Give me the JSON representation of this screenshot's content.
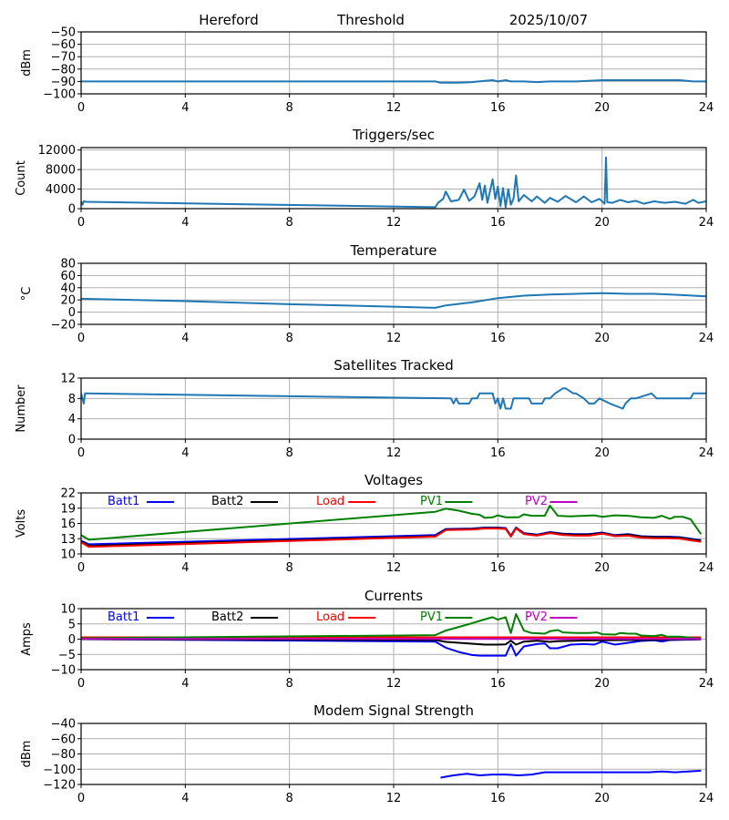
{
  "header": {
    "station": "Hereford",
    "plot": "Threshold",
    "date": "2025/10/07"
  },
  "chart_data": [
    {
      "id": "threshold",
      "type": "line",
      "title": "",
      "xlabel": "",
      "ylabel": "dBm",
      "xlim": [
        0,
        24
      ],
      "ylim": [
        -100,
        -50
      ],
      "xticks": [
        0,
        4,
        8,
        12,
        16,
        20,
        24
      ],
      "yticks": [
        -100,
        -90,
        -80,
        -70,
        -60,
        -50
      ],
      "ytick_labels": [
        "−100",
        "−90",
        "−80",
        "−70",
        "−60",
        "−50"
      ],
      "grid": true,
      "series": [
        {
          "name": "Threshold",
          "color": "#1f77b4",
          "x": [
            0,
            0.2,
            13.6,
            13.8,
            14.5,
            15.0,
            15.5,
            15.8,
            16.0,
            16.3,
            16.5,
            17.0,
            17.5,
            18.0,
            19.0,
            20.0,
            21.0,
            22.0,
            23.0,
            23.5,
            24
          ],
          "y": [
            -90,
            -90,
            -90,
            -91,
            -91,
            -90.5,
            -89.5,
            -89,
            -90,
            -89,
            -90,
            -90,
            -90.5,
            -90,
            -90,
            -89,
            -89,
            -89,
            -89,
            -90,
            -90
          ]
        }
      ]
    },
    {
      "id": "triggers",
      "type": "line",
      "title": "Triggers/sec",
      "ylabel": "Count",
      "xlim": [
        0,
        24
      ],
      "ylim": [
        0,
        12500
      ],
      "xticks": [
        0,
        4,
        8,
        12,
        16,
        20,
        24
      ],
      "yticks": [
        0,
        4000,
        8000,
        12000
      ],
      "ytick_labels": [
        "0",
        "4000",
        "8000",
        "12000"
      ],
      "grid": true,
      "series": [
        {
          "name": "Triggers",
          "color": "#1f77b4",
          "x": [
            0,
            0.05,
            0.1,
            0.2,
            13.6,
            13.7,
            13.9,
            14.0,
            14.2,
            14.5,
            14.7,
            14.9,
            15.1,
            15.3,
            15.4,
            15.5,
            15.6,
            15.8,
            15.9,
            16.0,
            16.1,
            16.2,
            16.3,
            16.4,
            16.5,
            16.6,
            16.7,
            16.8,
            17.0,
            17.3,
            17.5,
            17.8,
            18.0,
            18.3,
            18.6,
            19.0,
            19.3,
            19.6,
            19.9,
            20.1,
            20.15,
            20.2,
            20.4,
            20.7,
            21.0,
            21.3,
            21.6,
            22.0,
            22.4,
            22.8,
            23.2,
            23.5,
            23.7,
            24
          ],
          "y": [
            1500,
            800,
            1500,
            1400,
            300,
            1200,
            2000,
            3500,
            1500,
            1800,
            3900,
            1600,
            2500,
            5200,
            1800,
            4700,
            1200,
            6000,
            2000,
            4500,
            500,
            4200,
            300,
            4000,
            800,
            2000,
            6800,
            1500,
            2800,
            1500,
            2500,
            1200,
            2200,
            1400,
            2600,
            1300,
            2500,
            1300,
            2000,
            1000,
            10500,
            1300,
            1200,
            1800,
            1300,
            1600,
            1000,
            1500,
            1200,
            1400,
            1000,
            1800,
            1200,
            1500
          ]
        }
      ]
    },
    {
      "id": "temperature",
      "type": "line",
      "title": "Temperature",
      "ylabel": "°C",
      "xlim": [
        0,
        24
      ],
      "ylim": [
        -20,
        80
      ],
      "xticks": [
        0,
        4,
        8,
        12,
        16,
        20,
        24
      ],
      "yticks": [
        -20,
        0,
        20,
        40,
        60,
        80
      ],
      "ytick_labels": [
        "−20",
        "0",
        "20",
        "40",
        "60",
        "80"
      ],
      "grid": true,
      "series": [
        {
          "name": "Temperature",
          "color": "#1f77b4",
          "x": [
            0,
            4,
            8,
            12,
            13.6,
            14.0,
            15.0,
            16.0,
            17.0,
            18.0,
            19.0,
            20.0,
            21.0,
            22.0,
            23.0,
            24
          ],
          "y": [
            22,
            18,
            13,
            9,
            7,
            11,
            16,
            23,
            27,
            29,
            30,
            31,
            30,
            30,
            28,
            26
          ]
        }
      ]
    },
    {
      "id": "satellites",
      "type": "line",
      "title": "Satellites Tracked",
      "ylabel": "Number",
      "xlim": [
        0,
        24
      ],
      "ylim": [
        0,
        12
      ],
      "xticks": [
        0,
        4,
        8,
        12,
        16,
        20,
        24
      ],
      "yticks": [
        0,
        4,
        8,
        12
      ],
      "ytick_labels": [
        "0",
        "4",
        "8",
        "12"
      ],
      "grid": true,
      "series": [
        {
          "name": "Satellites",
          "color": "#1f77b4",
          "x": [
            0,
            0.1,
            0.15,
            0.2,
            14.2,
            14.3,
            14.4,
            14.5,
            14.9,
            15.0,
            15.2,
            15.3,
            15.8,
            15.9,
            16.0,
            16.1,
            16.2,
            16.3,
            16.5,
            16.6,
            17.2,
            17.3,
            17.7,
            17.8,
            18.0,
            18.2,
            18.5,
            18.6,
            18.9,
            19.0,
            19.3,
            19.5,
            19.7,
            19.9,
            20.3,
            20.8,
            20.9,
            21.1,
            21.3,
            21.9,
            22.1,
            22.4,
            22.6,
            23.4,
            23.5,
            24
          ],
          "y": [
            9,
            7,
            9,
            9,
            8,
            7,
            8,
            7,
            7,
            8,
            8,
            9,
            9,
            7,
            8,
            6,
            8,
            6,
            6,
            8,
            8,
            7,
            7,
            8,
            8,
            9,
            10,
            10,
            9,
            9,
            8,
            7,
            7,
            8,
            7,
            6,
            7,
            8,
            8,
            9,
            8,
            8,
            8,
            8,
            9,
            9
          ]
        }
      ]
    },
    {
      "id": "voltages",
      "type": "line",
      "title": "Voltages",
      "ylabel": "Volts",
      "xlim": [
        0,
        24
      ],
      "ylim": [
        10,
        22
      ],
      "xticks": [
        0,
        4,
        8,
        12,
        16,
        20,
        24
      ],
      "yticks": [
        10,
        13,
        16,
        19,
        22
      ],
      "ytick_labels": [
        "10",
        "13",
        "16",
        "19",
        "22"
      ],
      "grid": true,
      "legend": "top",
      "series": [
        {
          "name": "Batt1",
          "color": "#0000ff",
          "x": [
            0,
            0.3,
            13.6,
            14.0,
            15.0,
            15.5,
            16.0,
            16.3,
            16.5,
            16.7,
            17.0,
            17.5,
            18.0,
            18.5,
            19.0,
            19.5,
            20.0,
            20.5,
            21.0,
            21.5,
            22.0,
            22.5,
            23.0,
            23.5,
            23.8
          ],
          "y": [
            12.6,
            11.9,
            13.7,
            14.9,
            15.0,
            15.2,
            15.2,
            15.1,
            13.6,
            15.2,
            14.1,
            13.8,
            14.3,
            14.0,
            13.9,
            13.9,
            14.2,
            13.7,
            13.9,
            13.5,
            13.4,
            13.4,
            13.3,
            12.9,
            12.7
          ]
        },
        {
          "name": "Batt2",
          "color": "#000000",
          "x": [
            0,
            0.3,
            13.6,
            14.0,
            15.0,
            15.5,
            16.0,
            16.3,
            16.5,
            16.7,
            17.0,
            17.5,
            18.0,
            18.5,
            19.0,
            19.5,
            20.0,
            20.5,
            21.0,
            21.5,
            22.0,
            22.5,
            23.0,
            23.5,
            23.8
          ],
          "y": [
            12.4,
            11.6,
            13.5,
            14.8,
            14.9,
            15.1,
            15.1,
            15.0,
            13.5,
            15.1,
            14.0,
            13.7,
            14.2,
            13.9,
            13.8,
            13.8,
            14.1,
            13.6,
            13.8,
            13.4,
            13.3,
            13.3,
            13.2,
            12.8,
            12.6
          ]
        },
        {
          "name": "Load",
          "color": "#ff0000",
          "x": [
            0,
            0.3,
            13.6,
            14.0,
            15.0,
            15.5,
            16.0,
            16.3,
            16.5,
            16.7,
            17.0,
            17.5,
            18.0,
            18.5,
            19.0,
            19.5,
            20.0,
            20.5,
            21.0,
            21.5,
            22.0,
            22.5,
            23.0,
            23.5,
            23.8
          ],
          "y": [
            12.3,
            11.4,
            13.4,
            14.7,
            14.8,
            15.0,
            15.0,
            14.9,
            13.4,
            15.0,
            13.9,
            13.6,
            14.1,
            13.7,
            13.6,
            13.6,
            14.0,
            13.5,
            13.6,
            13.2,
            13.1,
            13.1,
            13.0,
            12.6,
            12.4
          ]
        },
        {
          "name": "PV1",
          "color": "#008000",
          "x": [
            0,
            0.3,
            13.6,
            14.0,
            14.5,
            15.0,
            15.3,
            15.5,
            15.8,
            16.0,
            16.3,
            16.8,
            17.0,
            17.3,
            17.8,
            18.0,
            18.3,
            18.8,
            19.3,
            19.7,
            20.0,
            20.5,
            21.0,
            21.5,
            22.0,
            22.3,
            22.6,
            22.8,
            23.1,
            23.4,
            23.8
          ],
          "y": [
            13.7,
            12.8,
            18.3,
            18.9,
            18.5,
            17.9,
            17.7,
            17.1,
            17.2,
            17.6,
            17.2,
            17.2,
            17.8,
            17.5,
            17.5,
            19.5,
            17.5,
            17.4,
            17.5,
            17.6,
            17.3,
            17.6,
            17.5,
            17.2,
            17.1,
            17.5,
            16.9,
            17.3,
            17.3,
            16.8,
            13.9
          ]
        },
        {
          "name": "PV2",
          "color": "#bf00bf",
          "x": [],
          "y": []
        }
      ]
    },
    {
      "id": "currents",
      "type": "line",
      "title": "Currents",
      "ylabel": "Amps",
      "xlim": [
        0,
        24
      ],
      "ylim": [
        -10,
        10
      ],
      "xticks": [
        0,
        4,
        8,
        12,
        16,
        20,
        24
      ],
      "yticks": [
        -10,
        -5,
        0,
        5,
        10
      ],
      "ytick_labels": [
        "−10",
        "−5",
        "0",
        "5",
        "10"
      ],
      "grid": true,
      "legend": "top",
      "series": [
        {
          "name": "Batt1",
          "color": "#0000ff",
          "x": [
            0,
            13.6,
            14.0,
            14.5,
            15.0,
            15.3,
            16.0,
            16.3,
            16.5,
            16.7,
            17.0,
            17.5,
            17.8,
            18.0,
            18.3,
            18.8,
            19.3,
            19.7,
            20.0,
            20.5,
            21.0,
            21.5,
            22.0,
            22.3,
            22.6,
            23.0,
            23.8
          ],
          "y": [
            0,
            -0.8,
            -2.8,
            -4.2,
            -5.2,
            -5.4,
            -5.4,
            -5.4,
            -1.6,
            -5.4,
            -2.4,
            -1.6,
            -1.4,
            -3.0,
            -3.0,
            -1.8,
            -1.6,
            -1.8,
            -0.8,
            -1.8,
            -1.2,
            -0.6,
            -0.4,
            -0.8,
            -0.3,
            -0.2,
            -0.1
          ]
        },
        {
          "name": "Batt2",
          "color": "#000000",
          "x": [
            0,
            13.6,
            14.0,
            15.0,
            15.5,
            16.0,
            16.3,
            16.5,
            16.7,
            17.0,
            17.5,
            18.0,
            18.3,
            19.0,
            20.0,
            21.0,
            22.0,
            23.0,
            23.8
          ],
          "y": [
            0,
            -0.3,
            -0.9,
            -1.5,
            -1.8,
            -1.8,
            -1.7,
            -0.5,
            -1.8,
            -0.8,
            -0.5,
            -0.9,
            -0.7,
            -0.5,
            -0.4,
            -0.3,
            -0.2,
            -0.1,
            0
          ]
        },
        {
          "name": "Load",
          "color": "#ff0000",
          "x": [
            0,
            23.8
          ],
          "y": [
            0.6,
            0.6
          ]
        },
        {
          "name": "PV1",
          "color": "#008000",
          "x": [
            0,
            13.6,
            14.0,
            14.5,
            15.0,
            15.3,
            15.8,
            16.0,
            16.3,
            16.5,
            16.7,
            17.0,
            17.3,
            17.8,
            18.0,
            18.3,
            18.5,
            19.0,
            19.5,
            19.8,
            20.0,
            20.5,
            20.7,
            21.0,
            21.3,
            21.5,
            22.0,
            22.3,
            22.5,
            23.0,
            23.5,
            23.8
          ],
          "y": [
            0.3,
            1.3,
            2.8,
            4.0,
            5.2,
            6.0,
            7.2,
            6.4,
            7.2,
            2.0,
            8.2,
            2.8,
            2.0,
            1.8,
            2.6,
            3.0,
            2.2,
            2.0,
            2.0,
            2.2,
            1.6,
            1.5,
            2.0,
            1.8,
            1.8,
            1.2,
            1.0,
            1.4,
            0.8,
            0.8,
            0.4,
            0.2
          ]
        },
        {
          "name": "PV2",
          "color": "#bf00bf",
          "x": [
            0,
            23.8
          ],
          "y": [
            0.1,
            0.1
          ]
        }
      ]
    },
    {
      "id": "modem",
      "type": "line",
      "title": "Modem Signal Strength",
      "ylabel": "dBm",
      "xlim": [
        0,
        24
      ],
      "ylim": [
        -120,
        -40
      ],
      "xticks": [
        0,
        4,
        8,
        12,
        16,
        20,
        24
      ],
      "yticks": [
        -120,
        -100,
        -80,
        -60,
        -40
      ],
      "ytick_labels": [
        "−120",
        "−100",
        "−80",
        "−60",
        "−40"
      ],
      "grid": true,
      "series": [
        {
          "name": "Modem",
          "color": "#0000ff",
          "x": [
            13.8,
            14.3,
            14.8,
            15.3,
            15.8,
            16.3,
            16.8,
            17.3,
            17.8,
            18.3,
            19.0,
            20.0,
            21.0,
            21.8,
            22.3,
            22.8,
            23.3,
            23.8
          ],
          "y": [
            -111,
            -108,
            -106,
            -108,
            -107,
            -107,
            -108,
            -107,
            -104,
            -104,
            -104,
            -104,
            -104,
            -104,
            -103,
            -104,
            -103,
            -102
          ]
        }
      ]
    }
  ]
}
